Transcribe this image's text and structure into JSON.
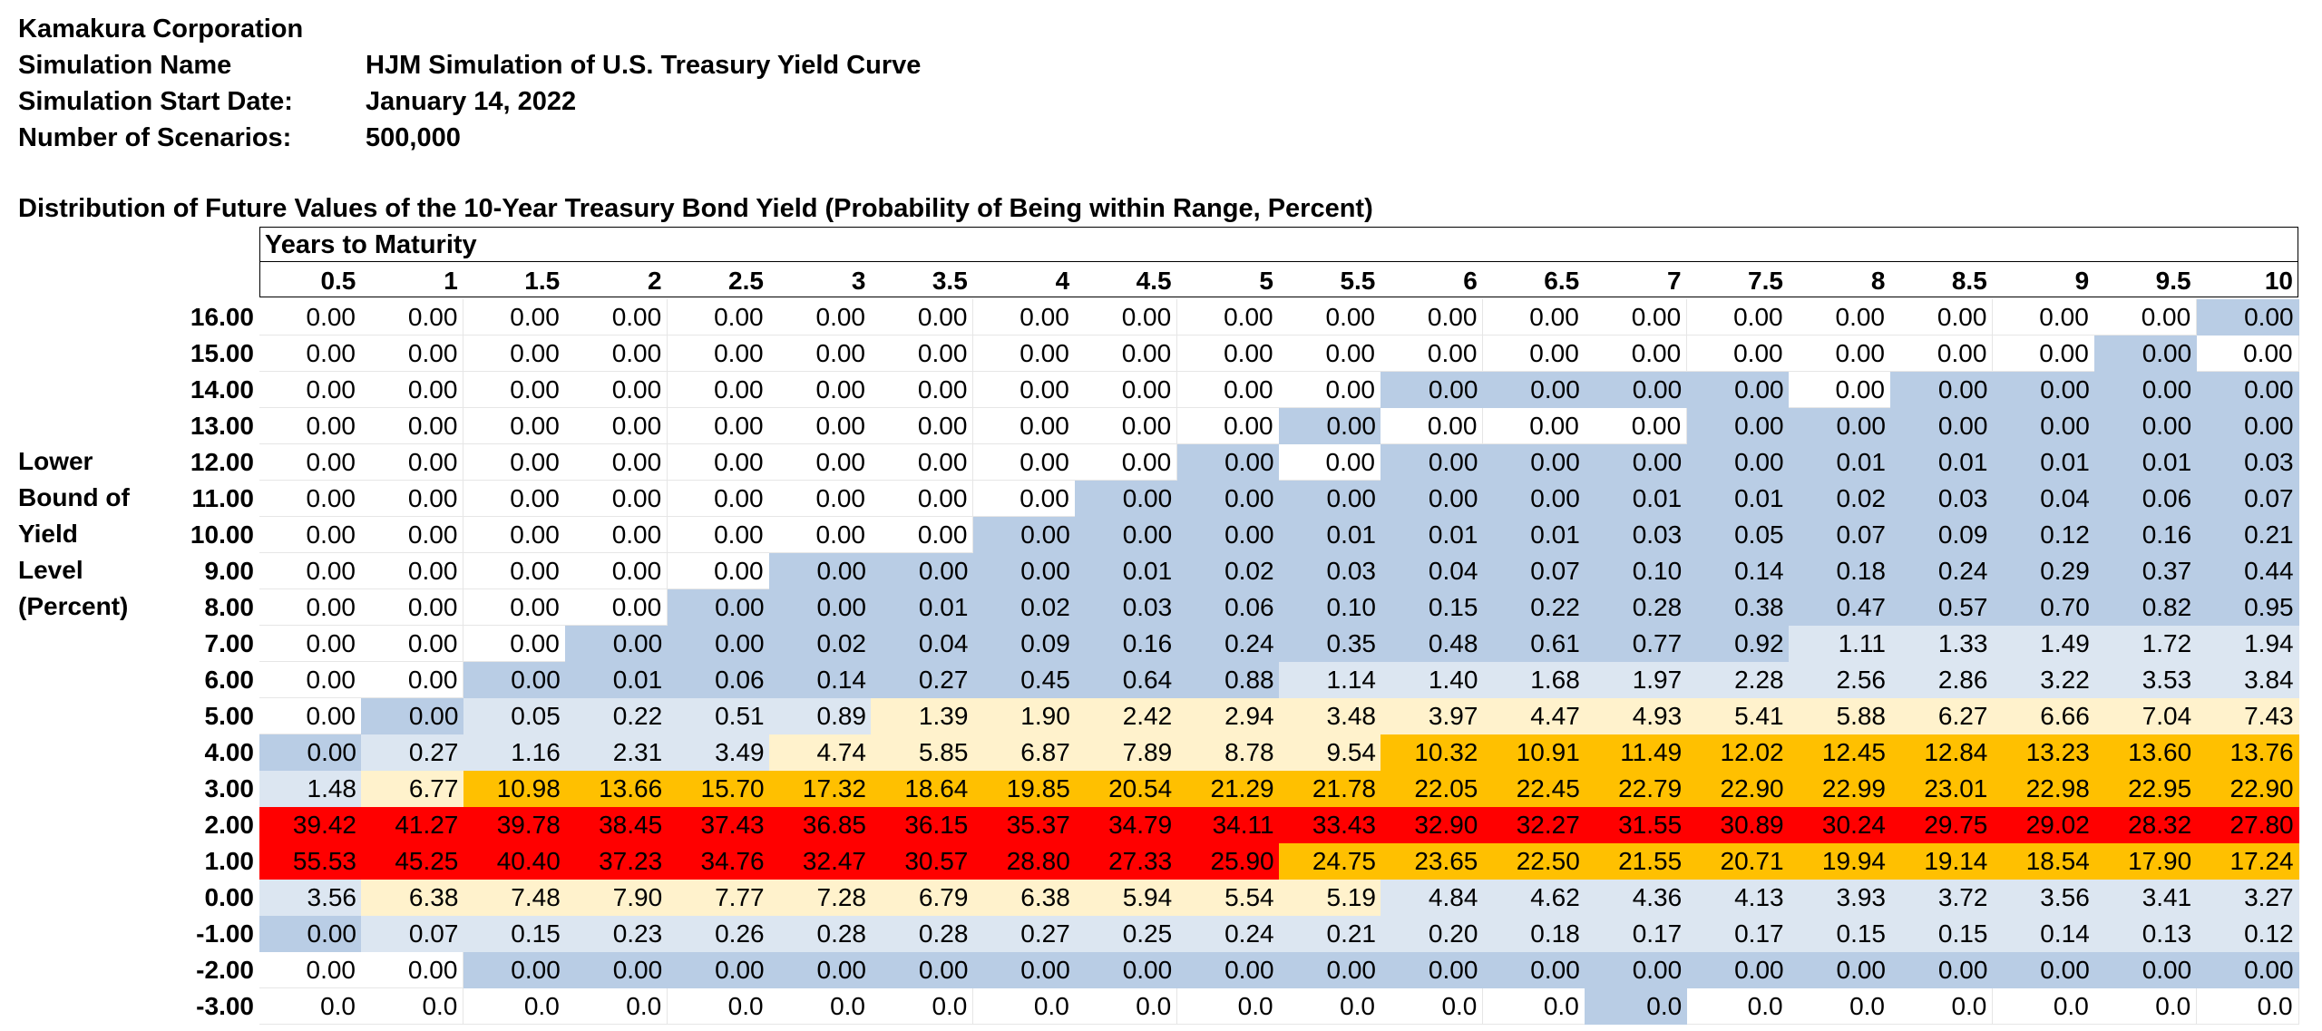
{
  "header": {
    "company": "Kamakura Corporation",
    "rows": [
      {
        "label": "Simulation Name",
        "value": "HJM Simulation of U.S. Treasury Yield Curve"
      },
      {
        "label": "Simulation Start Date:",
        "value": "January 14, 2022"
      },
      {
        "label": "Number of Scenarios:",
        "value": "500,000"
      }
    ]
  },
  "table": {
    "title": "Distribution of Future Values of the 10-Year Treasury Bond Yield (Probability of Being within Range, Percent)",
    "column_group_label": "Years to Maturity",
    "side_label_lines": [
      "Lower",
      "Bound of",
      "Yield",
      "Level",
      "(Percent)"
    ],
    "columns": [
      "0.5",
      "1",
      "1.5",
      "2",
      "2.5",
      "3",
      "3.5",
      "4",
      "4.5",
      "5",
      "5.5",
      "6",
      "6.5",
      "7",
      "7.5",
      "8",
      "8.5",
      "9",
      "9.5",
      "10"
    ],
    "colors": {
      "white": "#ffffff",
      "light_blue": "#b9cde5",
      "pale_blue": "#dce6f1",
      "pale_yellow": "#fff2cc",
      "orange": "#ffc000",
      "red": "#ff0000"
    },
    "rows": [
      {
        "label": "16.00",
        "values": [
          "0.00",
          "0.00",
          "0.00",
          "0.00",
          "0.00",
          "0.00",
          "0.00",
          "0.00",
          "0.00",
          "0.00",
          "0.00",
          "0.00",
          "0.00",
          "0.00",
          "0.00",
          "0.00",
          "0.00",
          "0.00",
          "0.00",
          "0.00"
        ],
        "fills": "wwwwwwwwwwwwwwwwwwwb"
      },
      {
        "label": "15.00",
        "values": [
          "0.00",
          "0.00",
          "0.00",
          "0.00",
          "0.00",
          "0.00",
          "0.00",
          "0.00",
          "0.00",
          "0.00",
          "0.00",
          "0.00",
          "0.00",
          "0.00",
          "0.00",
          "0.00",
          "0.00",
          "0.00",
          "0.00",
          "0.00"
        ],
        "fills": "wwwwwwwwwwwwwwwwwwbw"
      },
      {
        "label": "14.00",
        "values": [
          "0.00",
          "0.00",
          "0.00",
          "0.00",
          "0.00",
          "0.00",
          "0.00",
          "0.00",
          "0.00",
          "0.00",
          "0.00",
          "0.00",
          "0.00",
          "0.00",
          "0.00",
          "0.00",
          "0.00",
          "0.00",
          "0.00",
          "0.00"
        ],
        "fills": "wwwwwwwwwwwbbbbwbbbb"
      },
      {
        "label": "13.00",
        "values": [
          "0.00",
          "0.00",
          "0.00",
          "0.00",
          "0.00",
          "0.00",
          "0.00",
          "0.00",
          "0.00",
          "0.00",
          "0.00",
          "0.00",
          "0.00",
          "0.00",
          "0.00",
          "0.00",
          "0.00",
          "0.00",
          "0.00",
          "0.00"
        ],
        "fills": "wwwwwwwwwwbwwwbbbbbb"
      },
      {
        "label": "12.00",
        "values": [
          "0.00",
          "0.00",
          "0.00",
          "0.00",
          "0.00",
          "0.00",
          "0.00",
          "0.00",
          "0.00",
          "0.00",
          "0.00",
          "0.00",
          "0.00",
          "0.00",
          "0.00",
          "0.01",
          "0.01",
          "0.01",
          "0.01",
          "0.03"
        ],
        "fills": "wwwwwwwwwbwbbbbbbbbb"
      },
      {
        "label": "11.00",
        "values": [
          "0.00",
          "0.00",
          "0.00",
          "0.00",
          "0.00",
          "0.00",
          "0.00",
          "0.00",
          "0.00",
          "0.00",
          "0.00",
          "0.00",
          "0.00",
          "0.01",
          "0.01",
          "0.02",
          "0.03",
          "0.04",
          "0.06",
          "0.07"
        ],
        "fills": "wwwwwwwwbbbbbbbbbbbb"
      },
      {
        "label": "10.00",
        "values": [
          "0.00",
          "0.00",
          "0.00",
          "0.00",
          "0.00",
          "0.00",
          "0.00",
          "0.00",
          "0.00",
          "0.00",
          "0.01",
          "0.01",
          "0.01",
          "0.03",
          "0.05",
          "0.07",
          "0.09",
          "0.12",
          "0.16",
          "0.21"
        ],
        "fills": "wwwwwwwbbbbbbbbbbbbb"
      },
      {
        "label": "9.00",
        "values": [
          "0.00",
          "0.00",
          "0.00",
          "0.00",
          "0.00",
          "0.00",
          "0.00",
          "0.00",
          "0.01",
          "0.02",
          "0.03",
          "0.04",
          "0.07",
          "0.10",
          "0.14",
          "0.18",
          "0.24",
          "0.29",
          "0.37",
          "0.44"
        ],
        "fills": "wwwwwbbbbbbbbbbbbbbb"
      },
      {
        "label": "8.00",
        "values": [
          "0.00",
          "0.00",
          "0.00",
          "0.00",
          "0.00",
          "0.00",
          "0.01",
          "0.02",
          "0.03",
          "0.06",
          "0.10",
          "0.15",
          "0.22",
          "0.28",
          "0.38",
          "0.47",
          "0.57",
          "0.70",
          "0.82",
          "0.95"
        ],
        "fills": "wwwwbbbbbbbbbbbbbbbb"
      },
      {
        "label": "7.00",
        "values": [
          "0.00",
          "0.00",
          "0.00",
          "0.00",
          "0.00",
          "0.02",
          "0.04",
          "0.09",
          "0.16",
          "0.24",
          "0.35",
          "0.48",
          "0.61",
          "0.77",
          "0.92",
          "1.11",
          "1.33",
          "1.49",
          "1.72",
          "1.94"
        ],
        "fills": "wwwbbbbbbbbbbbbppppp"
      },
      {
        "label": "6.00",
        "values": [
          "0.00",
          "0.00",
          "0.00",
          "0.01",
          "0.06",
          "0.14",
          "0.27",
          "0.45",
          "0.64",
          "0.88",
          "1.14",
          "1.40",
          "1.68",
          "1.97",
          "2.28",
          "2.56",
          "2.86",
          "3.22",
          "3.53",
          "3.84"
        ],
        "fills": "wwbbbbbbbbpppppppppp"
      },
      {
        "label": "5.00",
        "values": [
          "0.00",
          "0.00",
          "0.05",
          "0.22",
          "0.51",
          "0.89",
          "1.39",
          "1.90",
          "2.42",
          "2.94",
          "3.48",
          "3.97",
          "4.47",
          "4.93",
          "5.41",
          "5.88",
          "6.27",
          "6.66",
          "7.04",
          "7.43"
        ],
        "fills": "wbppppyyyyyyyyyyyyyy"
      },
      {
        "label": "4.00",
        "values": [
          "0.00",
          "0.27",
          "1.16",
          "2.31",
          "3.49",
          "4.74",
          "5.85",
          "6.87",
          "7.89",
          "8.78",
          "9.54",
          "10.32",
          "10.91",
          "11.49",
          "12.02",
          "12.45",
          "12.84",
          "13.23",
          "13.60",
          "13.76"
        ],
        "fills": "bppppyyyyyyoooooooooo"
      },
      {
        "label": "3.00",
        "values": [
          "1.48",
          "6.77",
          "10.98",
          "13.66",
          "15.70",
          "17.32",
          "18.64",
          "19.85",
          "20.54",
          "21.29",
          "21.78",
          "22.05",
          "22.45",
          "22.79",
          "22.90",
          "22.99",
          "23.01",
          "22.98",
          "22.95",
          "22.90"
        ],
        "fills": "pyoooooooooooooooooo"
      },
      {
        "label": "2.00",
        "values": [
          "39.42",
          "41.27",
          "39.78",
          "38.45",
          "37.43",
          "36.85",
          "36.15",
          "35.37",
          "34.79",
          "34.11",
          "33.43",
          "32.90",
          "32.27",
          "31.55",
          "30.89",
          "30.24",
          "29.75",
          "29.02",
          "28.32",
          "27.80"
        ],
        "fills": "rrrrrrrrrrrrrrrrrrrr"
      },
      {
        "label": "1.00",
        "values": [
          "55.53",
          "45.25",
          "40.40",
          "37.23",
          "34.76",
          "32.47",
          "30.57",
          "28.80",
          "27.33",
          "25.90",
          "24.75",
          "23.65",
          "22.50",
          "21.55",
          "20.71",
          "19.94",
          "19.14",
          "18.54",
          "17.90",
          "17.24"
        ],
        "fills": "rrrrrrrrrrooooooooo o"
      },
      {
        "label": "0.00",
        "values": [
          "3.56",
          "6.38",
          "7.48",
          "7.90",
          "7.77",
          "7.28",
          "6.79",
          "6.38",
          "5.94",
          "5.54",
          "5.19",
          "4.84",
          "4.62",
          "4.36",
          "4.13",
          "3.93",
          "3.72",
          "3.56",
          "3.41",
          "3.27"
        ],
        "fills": "pyyyyyyyyyyppppppppp"
      },
      {
        "label": "-1.00",
        "values": [
          "0.00",
          "0.07",
          "0.15",
          "0.23",
          "0.26",
          "0.28",
          "0.28",
          "0.27",
          "0.25",
          "0.24",
          "0.21",
          "0.20",
          "0.18",
          "0.17",
          "0.17",
          "0.15",
          "0.15",
          "0.14",
          "0.13",
          "0.12"
        ],
        "fills": "bppppppppppppppppppp"
      },
      {
        "label": "-2.00",
        "values": [
          "0.00",
          "0.00",
          "0.00",
          "0.00",
          "0.00",
          "0.00",
          "0.00",
          "0.00",
          "0.00",
          "0.00",
          "0.00",
          "0.00",
          "0.00",
          "0.00",
          "0.00",
          "0.00",
          "0.00",
          "0.00",
          "0.00",
          "0.00"
        ],
        "fills": "wwbbbbbbbbbbbbbbbbbb"
      },
      {
        "label": "-3.00",
        "values": [
          "0.0",
          "0.0",
          "0.0",
          "0.0",
          "0.0",
          "0.0",
          "0.0",
          "0.0",
          "0.0",
          "0.0",
          "0.0",
          "0.0",
          "0.0",
          "0.0",
          "0.0",
          "0.0",
          "0.0",
          "0.0",
          "0.0",
          "0.0"
        ],
        "fills": "wwwwwwwwwwwwwbwwwwww"
      }
    ]
  }
}
